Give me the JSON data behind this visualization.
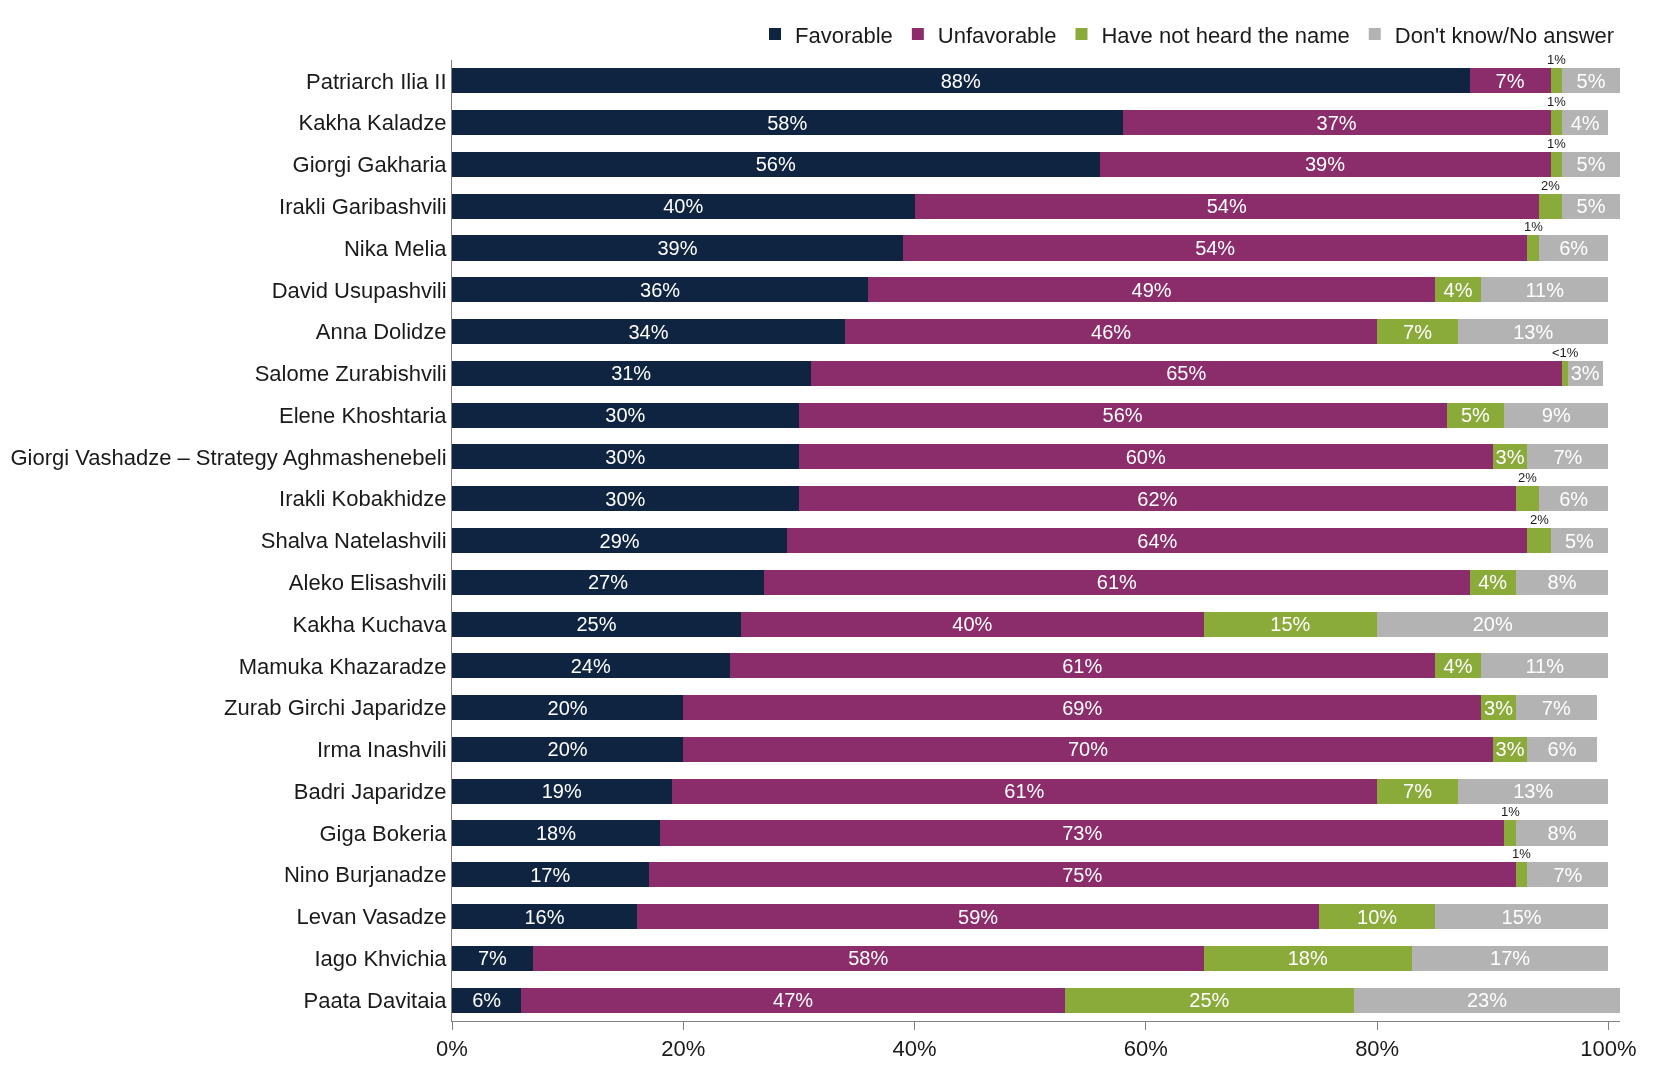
{
  "chart_data": {
    "type": "bar",
    "orientation": "horizontal",
    "stacked": true,
    "legend": "top",
    "categories": [
      "Patriarch Ilia II",
      "Kakha Kaladze",
      "Giorgi Gakharia",
      "Irakli Garibashvili",
      "Nika Melia",
      "David Usupashvili",
      "Anna Dolidze",
      "Salome Zurabishvili",
      "Elene Khoshtaria",
      "Giorgi Vashadze – Strategy Aghmashenebeli",
      "Irakli Kobakhidze",
      "Shalva Natelashvili",
      "Aleko Elisashvili",
      "Kakha Kuchava",
      "Mamuka Khazaradze",
      "Zurab Girchi Japaridze",
      "Irma Inashvili",
      "Badri Japaridze",
      "Giga Bokeria",
      "Nino Burjanadze",
      "Levan Vasadze",
      "Iago Khvichia",
      "Paata Davitaia"
    ],
    "xlim": [
      0,
      101
    ],
    "xticks": [
      {
        "value": 0,
        "label": "0%"
      },
      {
        "value": 20,
        "label": "20%"
      },
      {
        "value": 40,
        "label": "40%"
      },
      {
        "value": 60,
        "label": "60%"
      },
      {
        "value": 80,
        "label": "80%"
      },
      {
        "value": 100,
        "label": "100%"
      }
    ],
    "series": [
      {
        "name": "Favorable",
        "color": "#0f2440",
        "values": [
          88,
          58,
          56,
          40,
          39,
          36,
          34,
          31,
          30,
          30,
          30,
          29,
          27,
          25,
          24,
          20,
          20,
          19,
          18,
          17,
          16,
          7,
          6
        ],
        "value_labels": [
          "88%",
          "58%",
          "56%",
          "40%",
          "39%",
          "36%",
          "34%",
          "31%",
          "30%",
          "30%",
          "30%",
          "29%",
          "27%",
          "25%",
          "24%",
          "20%",
          "20%",
          "19%",
          "18%",
          "17%",
          "16%",
          "7%",
          "6%"
        ]
      },
      {
        "name": "Unfavorable",
        "color": "#8b2d6b",
        "values": [
          7,
          37,
          39,
          54,
          54,
          49,
          46,
          65,
          56,
          60,
          62,
          64,
          61,
          40,
          61,
          69,
          70,
          61,
          73,
          75,
          59,
          58,
          47
        ],
        "value_labels": [
          "7%",
          "37%",
          "39%",
          "54%",
          "54%",
          "49%",
          "46%",
          "65%",
          "56%",
          "60%",
          "62%",
          "64%",
          "61%",
          "40%",
          "61%",
          "69%",
          "70%",
          "61%",
          "73%",
          "75%",
          "59%",
          "58%",
          "47%"
        ]
      },
      {
        "name": "Have not heard the name",
        "color": "#8aab3a",
        "values": [
          1,
          1,
          1,
          2,
          1,
          4,
          7,
          0.5,
          5,
          3,
          2,
          2,
          4,
          15,
          4,
          3,
          3,
          7,
          1,
          1,
          10,
          18,
          25
        ],
        "value_labels": [
          "1%",
          "1%",
          "1%",
          "2%",
          "1%",
          "4%",
          "7%",
          "<1%",
          "5%",
          "3%",
          "2%",
          "2%",
          "4%",
          "15%",
          "4%",
          "3%",
          "3%",
          "7%",
          "1%",
          "1%",
          "10%",
          "18%",
          "25%"
        ]
      },
      {
        "name": "Don't know/No answer",
        "color": "#b3b3b3",
        "values": [
          5,
          4,
          5,
          5,
          6,
          11,
          13,
          3,
          9,
          7,
          6,
          5,
          8,
          20,
          11,
          7,
          6,
          13,
          8,
          7,
          15,
          17,
          23
        ],
        "value_labels": [
          "5%",
          "4%",
          "5%",
          "5%",
          "6%",
          "11%",
          "13%",
          "3%",
          "9%",
          "7%",
          "6%",
          "5%",
          "8%",
          "20%",
          "11%",
          "7%",
          "6%",
          "13%",
          "8%",
          "7%",
          "15%",
          "17%",
          "23%"
        ]
      }
    ]
  }
}
